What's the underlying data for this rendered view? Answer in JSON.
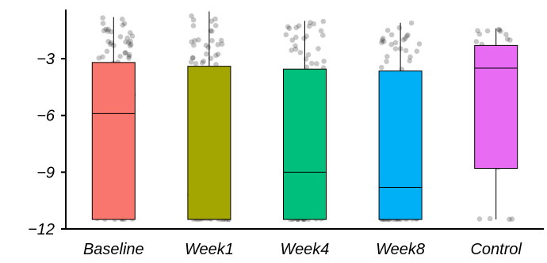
{
  "chart_data": {
    "type": "box",
    "title": "",
    "xlabel": "",
    "ylabel": "",
    "categories": [
      "Baseline",
      "Week1",
      "Week4",
      "Week8",
      "Control"
    ],
    "ylim": [
      -12,
      -0.4
    ],
    "yticks": [
      -3,
      -6,
      -9,
      -12
    ],
    "ytick_labels": [
      "−3",
      "−6",
      "−9",
      "−12"
    ],
    "grid": false,
    "legend": "none",
    "jitter_points": true,
    "series": [
      {
        "category": "Baseline",
        "color": "#F8766D",
        "whisker_low": -11.5,
        "q1": -11.5,
        "median": -5.9,
        "q3": -3.2,
        "whisker_high": -0.8,
        "n_points": 85
      },
      {
        "category": "Week1",
        "color": "#A3A500",
        "whisker_low": -11.5,
        "q1": -11.5,
        "median": -11.5,
        "q3": -3.4,
        "whisker_high": -0.5,
        "n_points": 80
      },
      {
        "category": "Week4",
        "color": "#00BF7D",
        "whisker_low": -11.5,
        "q1": -11.5,
        "median": -9.0,
        "q3": -3.55,
        "whisker_high": -1.0,
        "n_points": 80
      },
      {
        "category": "Week8",
        "color": "#00B0F6",
        "whisker_low": -11.5,
        "q1": -11.5,
        "median": -9.8,
        "q3": -3.65,
        "whisker_high": -1.1,
        "n_points": 80
      },
      {
        "category": "Control",
        "color": "#E76BF3",
        "whisker_low": -11.5,
        "q1": -8.8,
        "median": -3.5,
        "q3": -2.3,
        "whisker_high": -1.4,
        "n_points": 30
      }
    ]
  }
}
